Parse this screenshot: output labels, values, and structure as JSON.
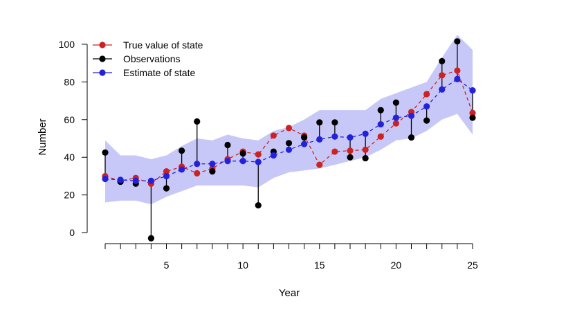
{
  "chart_data": {
    "type": "line",
    "xlabel": "Year",
    "ylabel": "Number",
    "xlim": [
      1,
      25
    ],
    "ylim": [
      -4,
      104
    ],
    "xticks": [
      5,
      10,
      15,
      20,
      25
    ],
    "yticks": [
      0,
      20,
      40,
      60,
      80,
      100
    ],
    "legend_placement": "top-left",
    "grid": false,
    "x": [
      1,
      2,
      3,
      4,
      5,
      6,
      7,
      8,
      9,
      10,
      11,
      12,
      13,
      14,
      15,
      16,
      17,
      18,
      19,
      20,
      21,
      22,
      23,
      24,
      25
    ],
    "band": {
      "lower": [
        16,
        17,
        17,
        15,
        19,
        22,
        25,
        25,
        25,
        25,
        24,
        29,
        32,
        33,
        34,
        36,
        38,
        40,
        44,
        49,
        50,
        54,
        60,
        63,
        52
      ],
      "upper": [
        49,
        41,
        41,
        39,
        41,
        46,
        50,
        49,
        52,
        50,
        49,
        54,
        56,
        60,
        65,
        65,
        65,
        65,
        71,
        74,
        77,
        80,
        93,
        105,
        97
      ],
      "color": "#C8C8F8"
    },
    "series": [
      {
        "name": "True value of state",
        "color": "#CC2222",
        "style": "dashed",
        "values": [
          30,
          27.5,
          29,
          26,
          32.5,
          35,
          31.5,
          34,
          39,
          43,
          41.5,
          51.5,
          55.5,
          51.5,
          36,
          43,
          43.5,
          44,
          51,
          58,
          64,
          73.5,
          83.5,
          86,
          63.5
        ]
      },
      {
        "name": "Observations",
        "color": "#000000",
        "style": "none",
        "values": [
          42.5,
          27,
          26,
          -3,
          23.5,
          43.5,
          59,
          32.5,
          46.5,
          42,
          14.5,
          43,
          47.5,
          50.5,
          58.5,
          58.5,
          40,
          39.5,
          65,
          69,
          50.5,
          59.5,
          91,
          101.5,
          61
        ]
      },
      {
        "name": "Estimate of state",
        "color": "#2222DD",
        "style": "dashed",
        "values": [
          28.5,
          28,
          27.5,
          27.5,
          30,
          33.5,
          36.5,
          36.5,
          38,
          38,
          37.5,
          41,
          44,
          47,
          49.5,
          51,
          50.5,
          52.5,
          57.5,
          61,
          62,
          67,
          76,
          81.5,
          75.5
        ]
      }
    ]
  }
}
